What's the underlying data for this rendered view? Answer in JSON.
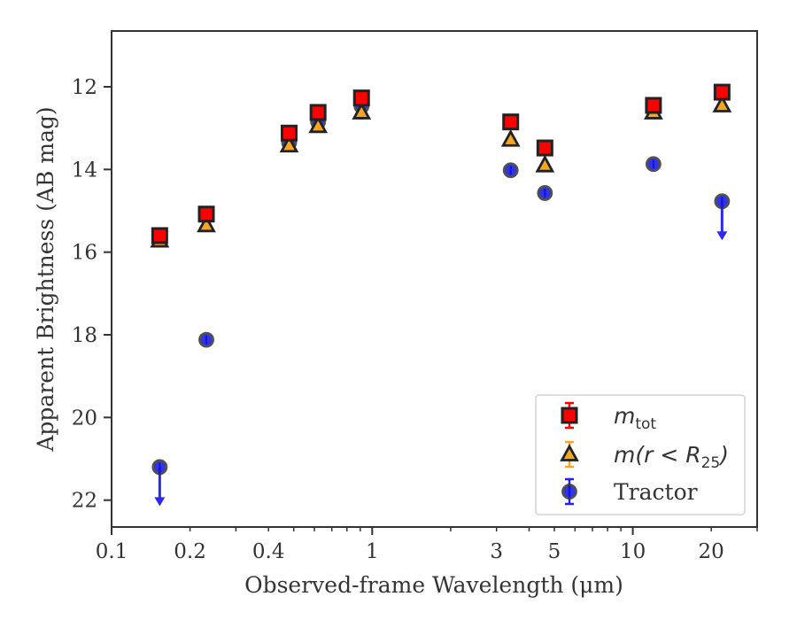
{
  "chart_data": {
    "type": "scatter",
    "xlabel": "Observed-frame Wavelength (μm)",
    "ylabel": "Apparent Brightness (AB mag)",
    "xscale": "log",
    "xlim": [
      0.1,
      30
    ],
    "ylim": [
      22.65,
      10.65
    ],
    "y_inverted": true,
    "xticks": [
      0.1,
      0.2,
      0.4,
      1,
      3,
      5,
      10,
      20
    ],
    "xtick_labels": [
      "0.1",
      "0.2",
      "0.4",
      "1",
      "3",
      "5",
      "10",
      "20"
    ],
    "yticks": [
      12,
      14,
      16,
      18,
      20,
      22
    ],
    "ytick_labels": [
      "12",
      "14",
      "16",
      "18",
      "20",
      "22"
    ],
    "grid": false,
    "legend_position": "bottom-right",
    "series": [
      {
        "name": "m_tot",
        "label_main": "m",
        "label_sub": "tot",
        "marker": "square",
        "color": "#ff0000",
        "edge_color": "#222222",
        "errorbar_color": "#ff0000",
        "x": [
          0.153,
          0.231,
          0.48,
          0.62,
          0.91,
          3.4,
          4.6,
          12.0,
          22.0
        ],
        "y": [
          15.6,
          15.08,
          13.12,
          12.62,
          12.27,
          12.85,
          13.48,
          12.45,
          12.13
        ]
      },
      {
        "name": "m(r < R_25)",
        "label_main": "m(r < R",
        "label_sub": "25",
        "label_tail": ")",
        "marker": "triangle",
        "color": "#f5a623",
        "edge_color": "#222222",
        "errorbar_color": "#f5a623",
        "x": [
          0.153,
          0.231,
          0.48,
          0.62,
          0.91,
          3.4,
          4.6,
          12.0,
          22.0
        ],
        "y": [
          15.72,
          15.35,
          13.42,
          12.95,
          12.62,
          13.28,
          13.9,
          12.62,
          12.45
        ]
      },
      {
        "name": "Tractor",
        "label_main": "Tractor",
        "marker": "circle",
        "color": "#1010e0",
        "edge_color": "#333333",
        "errorbar_color": "#2222ee",
        "x": [
          0.153,
          0.231,
          0.48,
          0.62,
          0.91,
          3.4,
          4.6,
          12.0,
          22.0
        ],
        "y": [
          21.2,
          18.12,
          13.35,
          12.85,
          12.47,
          14.02,
          14.57,
          13.87,
          14.77
        ],
        "upper_limit": [
          true,
          false,
          false,
          false,
          false,
          false,
          false,
          false,
          true
        ]
      }
    ]
  }
}
